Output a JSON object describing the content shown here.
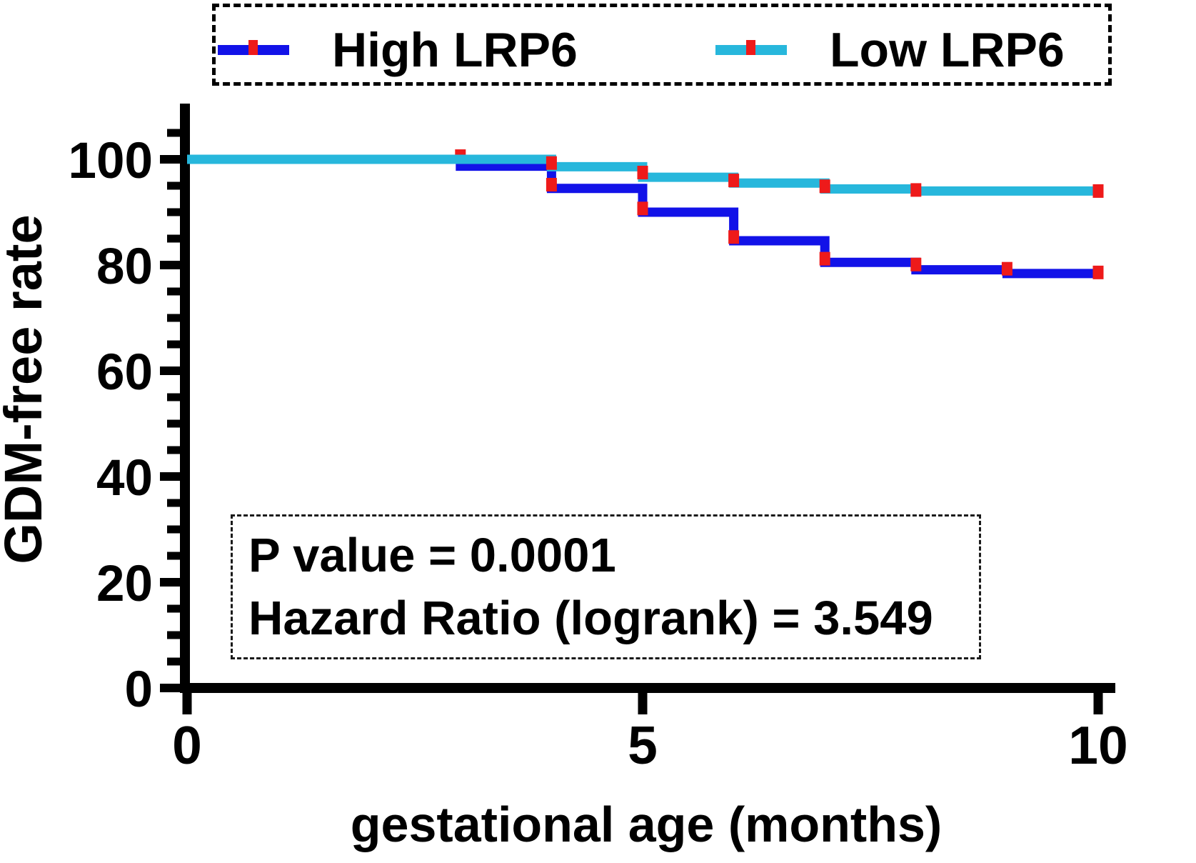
{
  "figure": {
    "background": "#ffffff",
    "axis_color": "#000000",
    "censor_marker_color": "#ee1a1a"
  },
  "legend": {
    "items": [
      {
        "label": "High LRP6",
        "color": "#1212e8"
      },
      {
        "label": "Low LRP6",
        "color": "#27b7dc"
      }
    ]
  },
  "annotation": {
    "line1": "P value = 0.0001",
    "line2": "Hazard Ratio (logrank) = 3.549"
  },
  "chart_data": {
    "type": "line",
    "subtype": "kaplan-meier-step",
    "title": "",
    "xlabel": "gestational age (months)",
    "ylabel": "GDM-free rate",
    "xlim": [
      0,
      10.3
    ],
    "ylim": [
      0,
      110
    ],
    "xticks": [
      0,
      5,
      10
    ],
    "yticks": [
      0,
      20,
      40,
      60,
      80,
      100
    ],
    "y_minor_tick_step": 5,
    "grid": false,
    "legend_position": "top",
    "p_value": "0.0001",
    "hazard_ratio_logrank": "3.549",
    "series": [
      {
        "name": "High LRP6",
        "color": "#1212e8",
        "end_x": 10,
        "steps": [
          [
            0,
            100
          ],
          [
            3,
            98.7
          ],
          [
            4,
            94.5
          ],
          [
            5,
            90
          ],
          [
            6,
            84.6
          ],
          [
            7,
            80.5
          ],
          [
            8,
            79.1
          ],
          [
            9,
            78.4
          ]
        ],
        "censor_marks": [
          [
            3,
            100.6
          ],
          [
            4,
            95.2
          ],
          [
            5,
            90.7
          ],
          [
            6,
            85.3
          ],
          [
            7,
            81.2
          ],
          [
            8,
            80.1
          ],
          [
            9,
            79.3
          ],
          [
            10,
            78.6
          ]
        ]
      },
      {
        "name": "Low LRP6",
        "color": "#27b7dc",
        "end_x": 10,
        "steps": [
          [
            0,
            100
          ],
          [
            4,
            98.6
          ],
          [
            5,
            96.6
          ],
          [
            6,
            95.5
          ],
          [
            7,
            94.4
          ],
          [
            8,
            94.0
          ]
        ],
        "censor_marks": [
          [
            4,
            99.3
          ],
          [
            5,
            97.5
          ],
          [
            6,
            96.0
          ],
          [
            7,
            94.9
          ],
          [
            8,
            94.2
          ],
          [
            10,
            94.0
          ]
        ]
      }
    ]
  }
}
